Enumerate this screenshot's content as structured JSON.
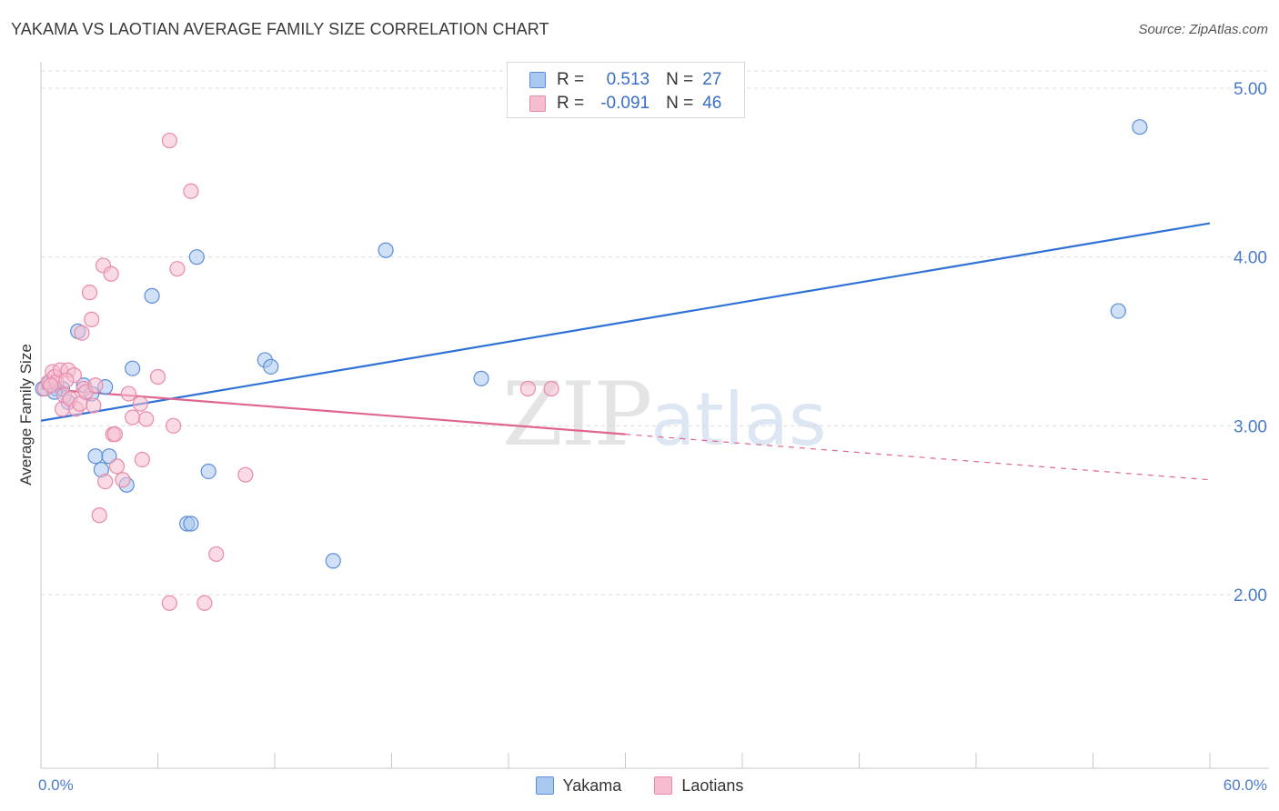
{
  "title": "YAKAMA VS LAOTIAN AVERAGE FAMILY SIZE CORRELATION CHART",
  "source": "Source: ZipAtlas.com",
  "watermark": {
    "zip": "ZIP",
    "atlas": "atlas"
  },
  "legend": {
    "rows": [
      {
        "r_label": "R =",
        "r_value": "0.513",
        "n_label": "N =",
        "n_value": "27"
      },
      {
        "r_label": "R =",
        "r_value": "-0.091",
        "n_label": "N =",
        "n_value": "46"
      }
    ]
  },
  "colors": {
    "yakama_fill": "#a9c8f0",
    "yakama_stroke": "#5b8ed6",
    "yakama_line": "#2f72d6",
    "laotian_fill": "#f6bdd0",
    "laotian_stroke": "#e88aaa",
    "laotian_line": "#e06690",
    "grid": "#dcdcdc",
    "axis_text": "#4a7cc9"
  },
  "chart_data": {
    "type": "scatter",
    "title": "YAKAMA VS LAOTIAN AVERAGE FAMILY SIZE CORRELATION CHART",
    "xlabel": "",
    "ylabel": "Average Family Size",
    "xlim": [
      0,
      60
    ],
    "ylim": [
      1.0,
      5.2
    ],
    "x_tick_labels": [
      "0.0%",
      "60.0%"
    ],
    "y_ticks": [
      2.0,
      3.0,
      4.0,
      5.0
    ],
    "y_tick_labels": [
      "2.00",
      "3.00",
      "4.00",
      "5.00"
    ],
    "series": [
      {
        "name": "Yakama",
        "r": 0.513,
        "n": 27,
        "trend": {
          "x": [
            0,
            60
          ],
          "y": [
            3.03,
            4.2
          ]
        },
        "points": [
          [
            0.1,
            3.22
          ],
          [
            0.4,
            3.25
          ],
          [
            0.8,
            3.22
          ],
          [
            1.1,
            3.22
          ],
          [
            1.4,
            3.14
          ],
          [
            1.9,
            3.56
          ],
          [
            2.2,
            3.24
          ],
          [
            2.6,
            3.19
          ],
          [
            2.8,
            2.82
          ],
          [
            3.1,
            2.74
          ],
          [
            3.3,
            3.23
          ],
          [
            3.5,
            2.82
          ],
          [
            4.4,
            2.65
          ],
          [
            4.7,
            3.34
          ],
          [
            5.7,
            3.77
          ],
          [
            7.5,
            2.42
          ],
          [
            7.7,
            2.42
          ],
          [
            8.0,
            4.0
          ],
          [
            8.6,
            2.73
          ],
          [
            11.5,
            3.39
          ],
          [
            11.8,
            3.35
          ],
          [
            15.0,
            2.2
          ],
          [
            17.7,
            4.04
          ],
          [
            22.6,
            3.28
          ],
          [
            55.3,
            3.68
          ],
          [
            56.4,
            4.77
          ],
          [
            0.7,
            3.2
          ]
        ]
      },
      {
        "name": "Laotians",
        "r": -0.091,
        "n": 46,
        "trend": {
          "x": [
            0,
            30
          ],
          "y": [
            3.22,
            2.95
          ]
        },
        "trend_dashed": {
          "x": [
            30,
            60
          ],
          "y": [
            2.95,
            2.68
          ]
        },
        "points": [
          [
            0.2,
            3.22
          ],
          [
            0.4,
            3.26
          ],
          [
            0.6,
            3.32
          ],
          [
            0.7,
            3.29
          ],
          [
            0.8,
            3.26
          ],
          [
            1.0,
            3.33
          ],
          [
            1.1,
            3.1
          ],
          [
            1.2,
            3.18
          ],
          [
            1.4,
            3.33
          ],
          [
            1.5,
            3.16
          ],
          [
            1.7,
            3.3
          ],
          [
            1.8,
            3.1
          ],
          [
            2.0,
            3.13
          ],
          [
            2.1,
            3.55
          ],
          [
            2.2,
            3.22
          ],
          [
            2.3,
            3.2
          ],
          [
            2.5,
            3.79
          ],
          [
            2.6,
            3.63
          ],
          [
            2.7,
            3.12
          ],
          [
            2.8,
            3.24
          ],
          [
            3.0,
            2.47
          ],
          [
            3.2,
            3.95
          ],
          [
            3.3,
            2.67
          ],
          [
            3.6,
            3.9
          ],
          [
            3.7,
            2.95
          ],
          [
            3.8,
            2.95
          ],
          [
            3.9,
            2.76
          ],
          [
            4.2,
            2.68
          ],
          [
            4.5,
            3.19
          ],
          [
            4.7,
            3.05
          ],
          [
            5.1,
            3.13
          ],
          [
            5.2,
            2.8
          ],
          [
            5.4,
            3.04
          ],
          [
            6.0,
            3.29
          ],
          [
            6.6,
            4.69
          ],
          [
            6.6,
            1.95
          ],
          [
            6.8,
            3.0
          ],
          [
            7.0,
            3.93
          ],
          [
            7.7,
            4.39
          ],
          [
            8.4,
            1.95
          ],
          [
            9.0,
            2.24
          ],
          [
            10.5,
            2.71
          ],
          [
            25.0,
            3.22
          ],
          [
            26.2,
            3.22
          ],
          [
            0.5,
            3.24
          ],
          [
            1.3,
            3.27
          ]
        ]
      }
    ],
    "legend": [
      "Yakama",
      "Laotians"
    ],
    "grid": true
  }
}
